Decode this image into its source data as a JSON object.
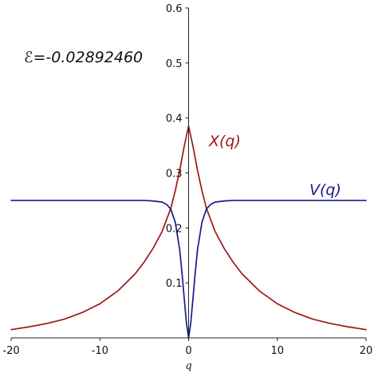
{
  "chart_data": {
    "type": "line",
    "title": "",
    "xlabel": "q",
    "ylabel": "",
    "xlim": [
      -20,
      20
    ],
    "ylim": [
      0,
      0.6
    ],
    "grid": false,
    "xticks": [
      -20,
      -10,
      0,
      10,
      20
    ],
    "yticks": [
      0.1,
      0.2,
      0.3,
      0.4,
      0.5,
      0.6
    ],
    "xtick_labels": [
      "-20",
      "-10",
      "0",
      "10",
      "20"
    ],
    "ytick_labels": [
      "0.1",
      "0.2",
      "0.3",
      "0.4",
      "0.5",
      "0.6"
    ],
    "annotation": "ℰ=-0.02892460",
    "series": [
      {
        "name": "X(q)",
        "color": "#a01818",
        "x": [
          -20,
          -18,
          -16,
          -14,
          -12,
          -10,
          -8,
          -6,
          -5,
          -4,
          -3,
          -2,
          -1.5,
          -1,
          -0.5,
          0,
          0.5,
          1,
          1.5,
          2,
          3,
          4,
          5,
          6,
          8,
          10,
          12,
          14,
          16,
          18,
          20
        ],
        "y": [
          0.015,
          0.02,
          0.026,
          0.034,
          0.046,
          0.062,
          0.085,
          0.117,
          0.138,
          0.163,
          0.193,
          0.236,
          0.268,
          0.305,
          0.348,
          0.385,
          0.348,
          0.305,
          0.268,
          0.236,
          0.193,
          0.163,
          0.138,
          0.117,
          0.085,
          0.062,
          0.046,
          0.034,
          0.026,
          0.02,
          0.015
        ]
      },
      {
        "name": "V(q)",
        "color": "#1a1a8c",
        "x": [
          -20,
          -10,
          -5,
          -4,
          -3,
          -2.5,
          -2,
          -1.5,
          -1,
          -0.75,
          -0.5,
          -0.25,
          0,
          0.25,
          0.5,
          0.75,
          1,
          1.5,
          2,
          2.5,
          3,
          4,
          5,
          10,
          20
        ],
        "y": [
          0.25,
          0.25,
          0.25,
          0.249,
          0.247,
          0.243,
          0.234,
          0.21,
          0.16,
          0.119,
          0.073,
          0.028,
          0.0,
          0.028,
          0.073,
          0.119,
          0.16,
          0.21,
          0.234,
          0.243,
          0.247,
          0.249,
          0.25,
          0.25,
          0.25
        ]
      }
    ]
  }
}
